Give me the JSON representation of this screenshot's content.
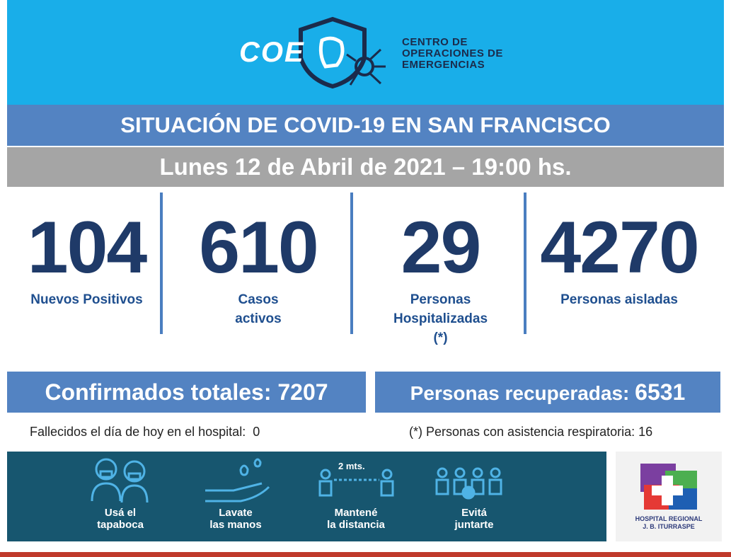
{
  "logo": {
    "acronym": "COE",
    "lines": [
      "CENTRO DE",
      "OPERACIONES DE",
      "EMERGENCIAS"
    ]
  },
  "header": {
    "title": "SITUACIÓN DE COVID-19 EN SAN FRANCISCO",
    "date": "Lunes 12 de Abril de 2021 – 19:00 hs."
  },
  "stats": [
    {
      "value": 104,
      "label": [
        "Nuevos Positivos"
      ]
    },
    {
      "value": 610,
      "label": [
        "Casos",
        "activos"
      ]
    },
    {
      "value": 29,
      "label": [
        "Personas",
        "Hospitalizadas",
        "(*)"
      ]
    },
    {
      "value": 4270,
      "label": [
        "Personas aisladas"
      ]
    }
  ],
  "totals": [
    {
      "label": "Confirmados totales:",
      "value": 7207
    },
    {
      "label": "Personas recuperadas:",
      "value": 6531
    }
  ],
  "notes": [
    {
      "label": "Fallecidos el día de hoy en el hospital:",
      "value": 0
    },
    {
      "label": "(*) Personas con asistencia respiratoria:",
      "value": 16
    }
  ],
  "tips": [
    {
      "lines": [
        "Usá el",
        "tapaboca"
      ]
    },
    {
      "lines": [
        "Lavate",
        "las manos"
      ]
    },
    {
      "lines": [
        "Mantené",
        "la distancia"
      ],
      "distance": "2 mts."
    },
    {
      "lines": [
        "Evitá",
        "juntarte"
      ]
    }
  ],
  "hospital": {
    "lines": [
      "HOSPITAL REGIONAL",
      "J. B. ITURRASPE"
    ]
  }
}
